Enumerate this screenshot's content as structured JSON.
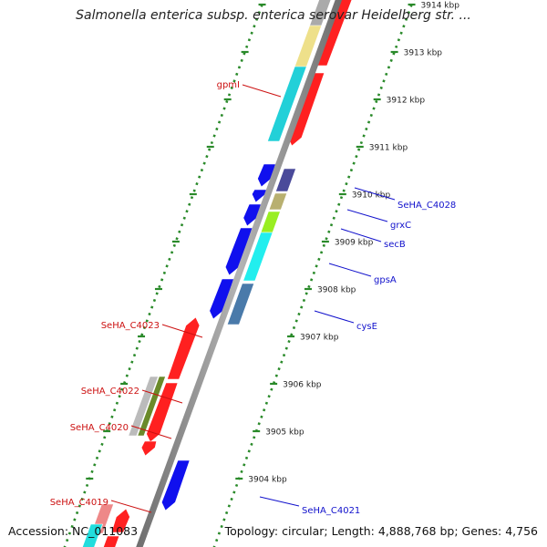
{
  "title": "Salmonella enterica subsp. enterica serovar Heidelberg str. ...",
  "footer": {
    "accession": "Accession: NC_011083",
    "topology": "Topology: circular; Length: 4,888,768 bp; Genes: 4,756"
  },
  "colors": {
    "backbone": "#8c8c8c",
    "tick": "#2a8a2a",
    "forward_label": "#cc1111",
    "reverse_label": "#1111cc"
  },
  "ticks": [
    "3914 kbp",
    "3913 kbp",
    "3912 kbp",
    "3911 kbp",
    "3910 kbp",
    "3909 kbp",
    "3908 kbp",
    "3907 kbp",
    "3906 kbp",
    "3905 kbp",
    "3904 kbp"
  ],
  "gene_labels": [
    {
      "text": "gpmI",
      "strand": "forward"
    },
    {
      "text": "SeHA_C4023",
      "strand": "forward"
    },
    {
      "text": "SeHA_C4022",
      "strand": "forward"
    },
    {
      "text": "SeHA_C4020",
      "strand": "forward"
    },
    {
      "text": "SeHA_C4019",
      "strand": "forward"
    },
    {
      "text": "SeHA_C4028",
      "strand": "reverse"
    },
    {
      "text": "grxC",
      "strand": "reverse"
    },
    {
      "text": "secB",
      "strand": "reverse"
    },
    {
      "text": "gpsA",
      "strand": "reverse"
    },
    {
      "text": "cysE",
      "strand": "reverse"
    },
    {
      "text": "SeHA_C4021",
      "strand": "reverse"
    }
  ]
}
